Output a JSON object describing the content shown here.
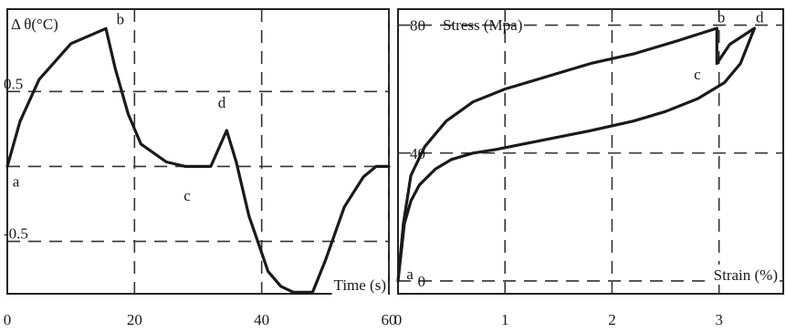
{
  "chart_data": [
    {
      "type": "line",
      "title": "",
      "ylabel": "Δ θ(°C)",
      "xlabel": "Time (s)",
      "xlim": [
        0,
        60
      ],
      "ylim": [
        -0.85,
        1.05
      ],
      "x_ticks": [
        {
          "value": 0,
          "label": "0"
        },
        {
          "value": 20,
          "label": "20"
        },
        {
          "value": 40,
          "label": "40"
        },
        {
          "value": 60,
          "label": "60"
        }
      ],
      "y_ticks": [
        {
          "value": 0.5,
          "label": "0.5"
        },
        {
          "value": -0.5,
          "label": "-0.5"
        }
      ],
      "grid": true,
      "series": [
        {
          "x": [
            0,
            2,
            5,
            10,
            15.5,
            17,
            19,
            21,
            25,
            28,
            30,
            32,
            34.5,
            36,
            38,
            41,
            43,
            45,
            48,
            50,
            53,
            56,
            58,
            60
          ],
          "y": [
            0,
            0.3,
            0.58,
            0.82,
            0.92,
            0.65,
            0.35,
            0.15,
            0.03,
            0.0,
            0.0,
            0.0,
            0.24,
            0.03,
            -0.33,
            -0.7,
            -0.8,
            -0.84,
            -0.84,
            -0.63,
            -0.27,
            -0.07,
            0.0,
            0.0
          ]
        }
      ],
      "annotations": [
        {
          "text": "a",
          "x": 0.5,
          "y": -0.05
        },
        {
          "text": "b",
          "x": 17.2,
          "y": 0.95
        },
        {
          "text": "c",
          "x": 30,
          "y": -0.12
        },
        {
          "text": "d",
          "x": 34.3,
          "y": 0.38
        }
      ]
    },
    {
      "type": "line",
      "title": "",
      "ylabel": "Stress (Mpa)",
      "xlabel": "Strain (%)",
      "xlim": [
        0,
        3.6
      ],
      "ylim": [
        -4,
        85
      ],
      "x_ticks": [
        {
          "value": 0,
          "label": "0"
        },
        {
          "value": 1,
          "label": "1"
        },
        {
          "value": 2,
          "label": "2"
        },
        {
          "value": 3,
          "label": "3"
        }
      ],
      "y_ticks": [
        {
          "value": 80,
          "label": "80"
        },
        {
          "value": 40,
          "label": "40"
        },
        {
          "value": 0,
          "label": "0"
        }
      ],
      "grid": true,
      "series": [
        {
          "x": [
            0,
            0.05,
            0.12,
            0.25,
            0.45,
            0.7,
            1.0,
            1.4,
            1.8,
            2.2,
            2.6,
            2.98,
            2.98,
            3.1,
            3.33,
            3.2,
            3.05,
            2.8,
            2.5,
            2.2,
            1.8,
            1.5,
            1.2,
            0.9,
            0.7,
            0.5,
            0.35,
            0.2,
            0.12,
            0.06,
            0
          ],
          "y": [
            0,
            18,
            33,
            42,
            50,
            56,
            60,
            64,
            68,
            71,
            75,
            79,
            68,
            74,
            79,
            68,
            62,
            57,
            53,
            50,
            47,
            45,
            43,
            41,
            40,
            38,
            35,
            30,
            25,
            18,
            0
          ]
        }
      ],
      "annotations": [
        {
          "text": "a",
          "x": 0.06,
          "y": 0
        },
        {
          "text": "b",
          "x": 3.02,
          "y": 82
        },
        {
          "text": "c",
          "x": 2.9,
          "y": 67
        },
        {
          "text": "d",
          "x": 3.38,
          "y": 82
        }
      ]
    }
  ]
}
